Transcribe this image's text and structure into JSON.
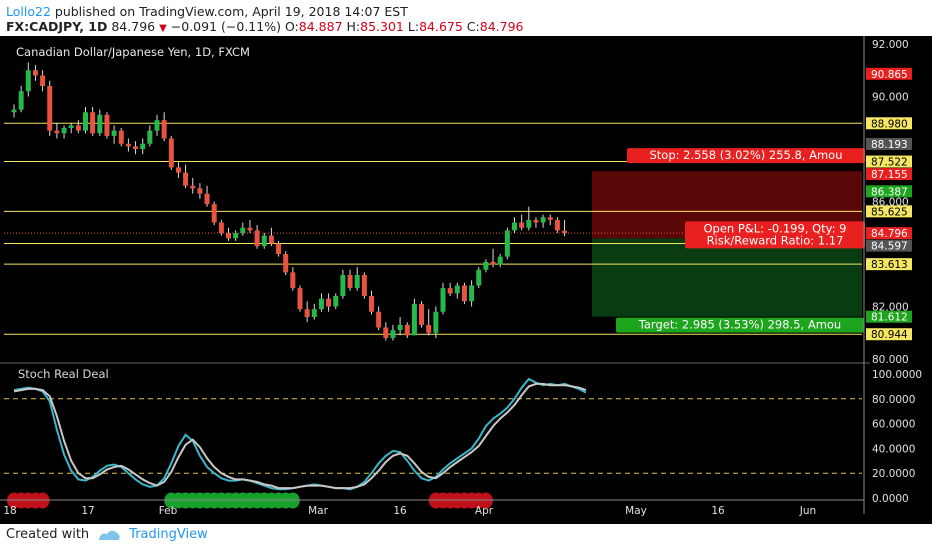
{
  "header": {
    "author": "Lollo22",
    "published_text": "published on TradingView.com, April 19, 2018 14:07 EST",
    "symbol": "FX:CADJPY, 1D",
    "last": "84.796",
    "change": "−0.091 (−0.11%)",
    "o_label": "O:",
    "o_value": "84.887",
    "h_label": "H:",
    "h_value": "85.301",
    "l_label": "L:",
    "l_value": "84.675",
    "c_label": "C:",
    "c_value": "84.796"
  },
  "footer": {
    "created_with": "Created with",
    "brand": "TradingView"
  },
  "colors": {
    "background": "#000000",
    "up": "#26b94a",
    "down": "#e8543f",
    "hline": "#f5e663",
    "stoch_k": "#3ab7c9",
    "stoch_d": "#c8c8c8"
  },
  "chart_data": [
    {
      "type": "candlestick",
      "title": "Canadian Dollar/Japanese Yen, 1D, FXCM",
      "ylim": [
        80,
        92
      ],
      "y_ticks": [
        "92.000",
        "90.000",
        "86.000",
        "82.000",
        "80.000"
      ],
      "x_ticks": [
        "18",
        "17",
        "Feb",
        "Mar",
        "16",
        "Apr",
        "May",
        "16",
        "Jun"
      ],
      "candles": [
        {
          "o": 89.4,
          "h": 89.7,
          "l": 89.2,
          "c": 89.5
        },
        {
          "o": 89.5,
          "h": 90.4,
          "l": 89.4,
          "c": 90.2
        },
        {
          "o": 90.2,
          "h": 91.3,
          "l": 90.0,
          "c": 91.0
        },
        {
          "o": 91.0,
          "h": 91.2,
          "l": 90.6,
          "c": 90.8
        },
        {
          "o": 90.8,
          "h": 91.0,
          "l": 90.2,
          "c": 90.4
        },
        {
          "o": 90.4,
          "h": 90.6,
          "l": 88.5,
          "c": 88.7
        },
        {
          "o": 88.7,
          "h": 89.0,
          "l": 88.4,
          "c": 88.6
        },
        {
          "o": 88.6,
          "h": 88.9,
          "l": 88.4,
          "c": 88.8
        },
        {
          "o": 88.8,
          "h": 89.0,
          "l": 88.6,
          "c": 88.9
        },
        {
          "o": 88.9,
          "h": 89.1,
          "l": 88.6,
          "c": 88.7
        },
        {
          "o": 88.7,
          "h": 89.6,
          "l": 88.6,
          "c": 89.4
        },
        {
          "o": 89.4,
          "h": 89.6,
          "l": 88.5,
          "c": 88.6
        },
        {
          "o": 88.6,
          "h": 89.5,
          "l": 88.5,
          "c": 89.3
        },
        {
          "o": 89.3,
          "h": 89.4,
          "l": 88.4,
          "c": 88.5
        },
        {
          "o": 88.5,
          "h": 88.9,
          "l": 88.2,
          "c": 88.7
        },
        {
          "o": 88.7,
          "h": 88.8,
          "l": 88.1,
          "c": 88.2
        },
        {
          "o": 88.2,
          "h": 88.4,
          "l": 87.9,
          "c": 88.1
        },
        {
          "o": 88.1,
          "h": 88.3,
          "l": 87.8,
          "c": 88.0
        },
        {
          "o": 88.0,
          "h": 88.4,
          "l": 87.8,
          "c": 88.2
        },
        {
          "o": 88.2,
          "h": 88.9,
          "l": 88.1,
          "c": 88.7
        },
        {
          "o": 88.7,
          "h": 89.3,
          "l": 88.5,
          "c": 89.1
        },
        {
          "o": 89.1,
          "h": 89.4,
          "l": 88.3,
          "c": 88.4
        },
        {
          "o": 88.4,
          "h": 88.5,
          "l": 87.2,
          "c": 87.3
        },
        {
          "o": 87.3,
          "h": 87.5,
          "l": 86.9,
          "c": 87.1
        },
        {
          "o": 87.1,
          "h": 87.4,
          "l": 86.5,
          "c": 86.6
        },
        {
          "o": 86.6,
          "h": 86.9,
          "l": 86.3,
          "c": 86.5
        },
        {
          "o": 86.5,
          "h": 86.7,
          "l": 86.1,
          "c": 86.3
        },
        {
          "o": 86.3,
          "h": 86.6,
          "l": 85.8,
          "c": 85.9
        },
        {
          "o": 85.9,
          "h": 86.0,
          "l": 85.1,
          "c": 85.2
        },
        {
          "o": 85.2,
          "h": 85.3,
          "l": 84.7,
          "c": 84.8
        },
        {
          "o": 84.8,
          "h": 85.0,
          "l": 84.5,
          "c": 84.6
        },
        {
          "o": 84.6,
          "h": 84.9,
          "l": 84.5,
          "c": 84.8
        },
        {
          "o": 84.8,
          "h": 85.2,
          "l": 84.7,
          "c": 85.0
        },
        {
          "o": 85.0,
          "h": 85.3,
          "l": 84.8,
          "c": 84.9
        },
        {
          "o": 84.9,
          "h": 85.1,
          "l": 84.2,
          "c": 84.3
        },
        {
          "o": 84.3,
          "h": 84.8,
          "l": 84.2,
          "c": 84.7
        },
        {
          "o": 84.7,
          "h": 85.0,
          "l": 84.3,
          "c": 84.4
        },
        {
          "o": 84.4,
          "h": 84.5,
          "l": 83.9,
          "c": 84.0
        },
        {
          "o": 84.0,
          "h": 84.1,
          "l": 83.2,
          "c": 83.3
        },
        {
          "o": 83.3,
          "h": 83.5,
          "l": 82.6,
          "c": 82.7
        },
        {
          "o": 82.7,
          "h": 82.8,
          "l": 81.8,
          "c": 81.9
        },
        {
          "o": 81.9,
          "h": 82.2,
          "l": 81.4,
          "c": 81.6
        },
        {
          "o": 81.6,
          "h": 82.1,
          "l": 81.5,
          "c": 81.9
        },
        {
          "o": 81.9,
          "h": 82.5,
          "l": 81.8,
          "c": 82.3
        },
        {
          "o": 82.3,
          "h": 82.5,
          "l": 81.8,
          "c": 82.0
        },
        {
          "o": 82.0,
          "h": 82.5,
          "l": 81.9,
          "c": 82.4
        },
        {
          "o": 82.4,
          "h": 83.4,
          "l": 82.3,
          "c": 83.2
        },
        {
          "o": 83.2,
          "h": 83.4,
          "l": 82.6,
          "c": 82.7
        },
        {
          "o": 82.7,
          "h": 83.5,
          "l": 82.6,
          "c": 83.2
        },
        {
          "o": 83.2,
          "h": 83.3,
          "l": 82.3,
          "c": 82.4
        },
        {
          "o": 82.4,
          "h": 82.6,
          "l": 81.7,
          "c": 81.8
        },
        {
          "o": 81.8,
          "h": 82.0,
          "l": 81.1,
          "c": 81.2
        },
        {
          "o": 81.2,
          "h": 81.4,
          "l": 80.7,
          "c": 80.8
        },
        {
          "o": 80.8,
          "h": 81.3,
          "l": 80.7,
          "c": 81.1
        },
        {
          "o": 81.1,
          "h": 81.6,
          "l": 80.9,
          "c": 81.3
        },
        {
          "o": 81.3,
          "h": 81.4,
          "l": 80.8,
          "c": 80.9
        },
        {
          "o": 80.9,
          "h": 82.3,
          "l": 80.9,
          "c": 82.1
        },
        {
          "o": 82.1,
          "h": 82.2,
          "l": 81.2,
          "c": 81.3
        },
        {
          "o": 81.3,
          "h": 81.9,
          "l": 80.9,
          "c": 81.0
        },
        {
          "o": 81.0,
          "h": 82.0,
          "l": 80.8,
          "c": 81.8
        },
        {
          "o": 81.8,
          "h": 82.9,
          "l": 81.7,
          "c": 82.7
        },
        {
          "o": 82.7,
          "h": 82.9,
          "l": 82.4,
          "c": 82.5
        },
        {
          "o": 82.5,
          "h": 82.9,
          "l": 82.3,
          "c": 82.8
        },
        {
          "o": 82.8,
          "h": 82.9,
          "l": 82.1,
          "c": 82.2
        },
        {
          "o": 82.2,
          "h": 83.0,
          "l": 82.0,
          "c": 82.8
        },
        {
          "o": 82.8,
          "h": 83.5,
          "l": 82.7,
          "c": 83.4
        },
        {
          "o": 83.4,
          "h": 83.8,
          "l": 83.3,
          "c": 83.7
        },
        {
          "o": 83.7,
          "h": 84.2,
          "l": 83.5,
          "c": 83.6
        },
        {
          "o": 83.6,
          "h": 84.0,
          "l": 83.5,
          "c": 83.9
        },
        {
          "o": 83.9,
          "h": 85.0,
          "l": 83.8,
          "c": 84.9
        },
        {
          "o": 84.9,
          "h": 85.4,
          "l": 84.8,
          "c": 85.2
        },
        {
          "o": 85.2,
          "h": 85.5,
          "l": 84.9,
          "c": 85.0
        },
        {
          "o": 85.0,
          "h": 85.8,
          "l": 84.9,
          "c": 85.3
        },
        {
          "o": 85.3,
          "h": 85.4,
          "l": 85.0,
          "c": 85.2
        },
        {
          "o": 85.2,
          "h": 85.5,
          "l": 85.0,
          "c": 85.4
        },
        {
          "o": 85.4,
          "h": 85.5,
          "l": 85.1,
          "c": 85.3
        },
        {
          "o": 85.3,
          "h": 85.4,
          "l": 84.8,
          "c": 84.9
        },
        {
          "o": 84.887,
          "h": 85.301,
          "l": 84.675,
          "c": 84.796
        }
      ],
      "horizontal_levels": [
        88.98,
        87.522,
        85.625,
        84.4,
        83.613,
        80.944
      ],
      "price_labels": [
        {
          "value": "90.865",
          "color": "#e8201f",
          "text_color": "#ffffff"
        },
        {
          "value": "88.980",
          "color": "#f5e663",
          "text_color": "#000000"
        },
        {
          "value": "88.193",
          "color": "#555555",
          "text_color": "#ffffff"
        },
        {
          "value": "87.522",
          "color": "#f5e663",
          "text_color": "#000000"
        },
        {
          "value": "87.155",
          "color": "#e8201f",
          "text_color": "#ffffff"
        },
        {
          "value": "86.387",
          "color": "#1ea51e",
          "text_color": "#ffffff"
        },
        {
          "value": "85.625",
          "color": "#f5e663",
          "text_color": "#000000"
        },
        {
          "value": "84.796",
          "color": "#e8201f",
          "text_color": "#ffffff"
        },
        {
          "value": "84.597",
          "color": "#555555",
          "text_color": "#ffffff"
        },
        {
          "value": "83.613",
          "color": "#f5e663",
          "text_color": "#000000"
        },
        {
          "value": "81.612",
          "color": "#1ea51e",
          "text_color": "#ffffff"
        },
        {
          "value": "80.944",
          "color": "#f5e663",
          "text_color": "#000000"
        }
      ],
      "position": {
        "entry": 84.597,
        "stop": 87.155,
        "target": 81.612,
        "stop_label": "Stop: 2.558 (3.02%) 255.8, Amou",
        "pnl_label": "Open P&L: -0.199, Qty: 9",
        "rr_label": "Risk/Reward Ratio: 1.17",
        "target_label": "Target: 2.985 (3.53%) 298.5, Amou"
      }
    },
    {
      "type": "line",
      "title": "Stoch Real Deal",
      "ylim": [
        0,
        100
      ],
      "y_ticks": [
        "100.0000",
        "80.0000",
        "60.0000",
        "40.0000",
        "20.0000",
        "0.0000"
      ],
      "reference_lines": [
        80,
        20
      ],
      "series": [
        {
          "values": [
            87,
            88,
            89,
            88,
            86,
            78,
            55,
            35,
            22,
            15,
            14,
            17,
            22,
            26,
            27,
            25,
            20,
            15,
            11,
            9,
            10,
            16,
            28,
            42,
            51,
            46,
            34,
            25,
            20,
            16,
            14,
            14,
            15,
            14,
            12,
            10,
            8,
            7,
            7,
            8,
            9,
            10,
            11,
            10,
            9,
            8,
            8,
            7,
            9,
            13,
            20,
            28,
            34,
            38,
            37,
            30,
            22,
            16,
            14,
            17,
            23,
            28,
            32,
            36,
            40,
            48,
            58,
            64,
            68,
            73,
            80,
            89,
            96,
            93,
            91,
            92,
            91,
            92,
            90,
            88,
            85
          ]
        },
        {
          "values": [
            86,
            87,
            88,
            88,
            87,
            82,
            66,
            46,
            30,
            20,
            16,
            16,
            19,
            23,
            25,
            26,
            23,
            19,
            15,
            12,
            10,
            13,
            21,
            33,
            43,
            47,
            41,
            32,
            25,
            20,
            17,
            15,
            15,
            14,
            13,
            11,
            10,
            8,
            8,
            8,
            9,
            10,
            10,
            10,
            9,
            8,
            8,
            8,
            9,
            11,
            16,
            22,
            29,
            34,
            36,
            34,
            28,
            21,
            17,
            16,
            20,
            25,
            29,
            33,
            37,
            42,
            50,
            58,
            64,
            69,
            75,
            83,
            90,
            92,
            92,
            91,
            91,
            91,
            90,
            89,
            87
          ]
        }
      ],
      "markers": [
        {
          "label": "red",
          "from": 0,
          "to": 4
        },
        {
          "label": "green",
          "from": 22,
          "to": 39
        },
        {
          "label": "red",
          "from": 59,
          "to": 66
        }
      ]
    }
  ]
}
